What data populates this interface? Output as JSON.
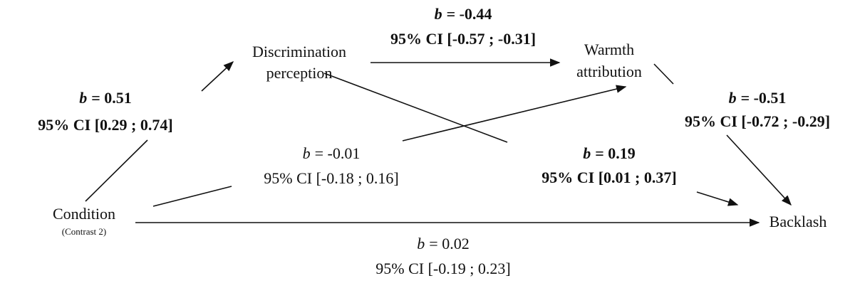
{
  "nodes": [
    {
      "lines": [
        "Condition"
      ],
      "note": "(Contrast 2)"
    },
    {
      "lines": [
        "Discrimination",
        "perception"
      ]
    },
    {
      "lines": [
        "Warmth",
        "attribution"
      ]
    },
    {
      "lines": [
        "Backlash"
      ]
    }
  ],
  "edges": [
    {
      "coef_symbol": "b",
      "coef": "= 0.51",
      "ci": "95% CI [0.29 ; 0.74]",
      "bold": true
    },
    {
      "coef_symbol": "b",
      "coef": "= -0.44",
      "ci": "95% CI [-0.57 ; -0.31]",
      "bold": true
    },
    {
      "coef_symbol": "b",
      "coef": "= -0.51",
      "ci": "95% CI [-0.72 ; -0.29]",
      "bold": true
    },
    {
      "coef_symbol": "b",
      "coef": "= 0.19",
      "ci": "95% CI [0.01 ; 0.37]",
      "bold": true
    },
    {
      "coef_symbol": "b",
      "coef": "= -0.01",
      "ci": "95% CI [-0.18 ; 0.16]",
      "bold": false
    },
    {
      "coef_symbol": "b",
      "coef": "= 0.02",
      "ci": "95% CI [-0.19 ; 0.23]",
      "bold": false
    }
  ]
}
